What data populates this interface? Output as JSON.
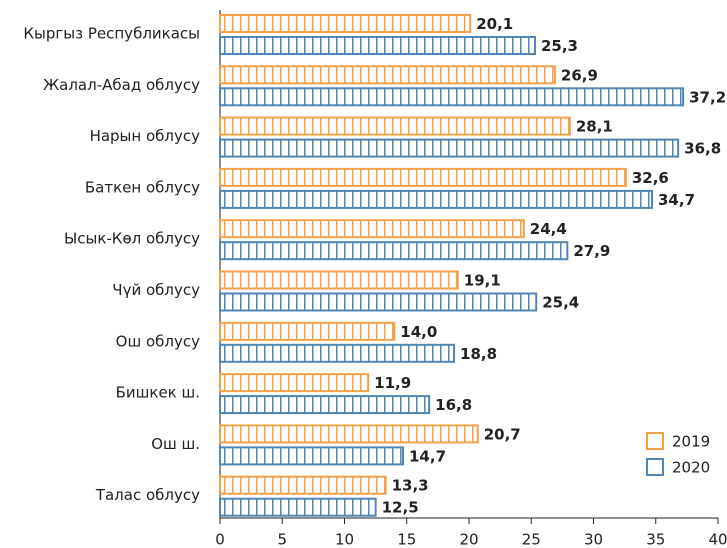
{
  "chart_data": {
    "type": "bar",
    "orientation": "horizontal",
    "categories": [
      "Кыргыз Республикасы",
      "Жалал-Абад облусу",
      "Нарын облусу",
      "Баткен облусу",
      "Ысык-Көл облусу",
      "Чүй облусу",
      "Ош облусу",
      "Бишкек ш.",
      "Ош ш.",
      "Талас облусу"
    ],
    "series": [
      {
        "name": "2019",
        "color": "#f4a04a",
        "values": [
          20.1,
          26.9,
          28.1,
          32.6,
          24.4,
          19.1,
          14.0,
          11.9,
          20.7,
          13.3
        ],
        "value_labels": [
          "20,1",
          "26,9",
          "28,1",
          "32,6",
          "24,4",
          "19,1",
          "14,0",
          "11,9",
          "20,7",
          "13,3"
        ]
      },
      {
        "name": "2020",
        "color": "#4f86b5",
        "values": [
          25.3,
          37.2,
          36.8,
          34.7,
          27.9,
          25.4,
          18.8,
          16.8,
          14.7,
          12.5
        ],
        "value_labels": [
          "25,3",
          "37,2",
          "36,8",
          "34,7",
          "27,9",
          "25,4",
          "18,8",
          "16,8",
          "14,7",
          "12,5"
        ]
      }
    ],
    "xlim": [
      0,
      40
    ],
    "xticks": [
      0,
      5,
      10,
      15,
      20,
      25,
      30,
      35,
      40
    ],
    "legend": "lower right"
  }
}
